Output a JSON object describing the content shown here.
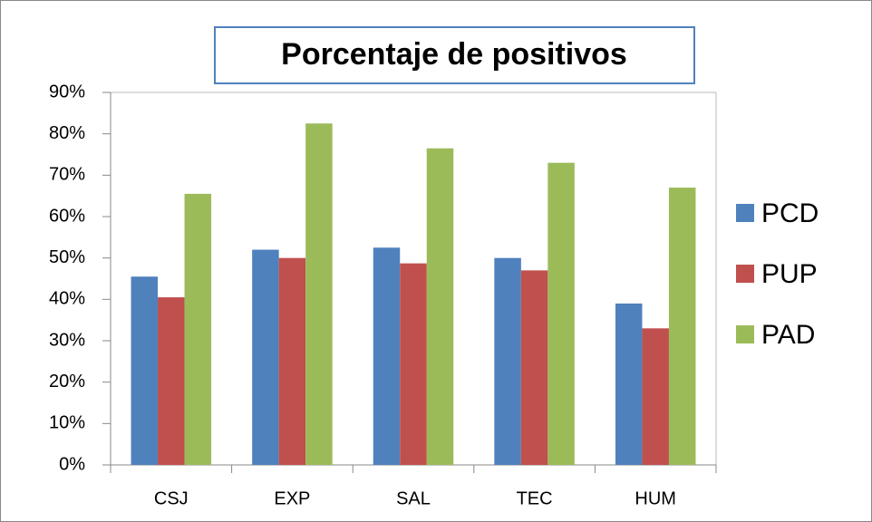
{
  "chart_data": {
    "type": "bar",
    "title": "Porcentaje de positivos",
    "categories": [
      "CSJ",
      "EXP",
      "SAL",
      "TEC",
      "HUM"
    ],
    "series": [
      {
        "name": "PCD",
        "color": "#4f81bd",
        "values": [
          45.5,
          52,
          52.5,
          50,
          39
        ]
      },
      {
        "name": "PUP",
        "color": "#c0504d",
        "values": [
          40.5,
          50,
          48.7,
          47,
          33
        ]
      },
      {
        "name": "PAD",
        "color": "#9bbb59",
        "values": [
          65.5,
          82.5,
          76.5,
          73,
          67
        ]
      }
    ],
    "ylim": [
      0,
      90
    ],
    "yticks": [
      {
        "value": 0,
        "label": "0%"
      },
      {
        "value": 10,
        "label": "10%"
      },
      {
        "value": 20,
        "label": "20%"
      },
      {
        "value": 30,
        "label": "30%"
      },
      {
        "value": 40,
        "label": "40%"
      },
      {
        "value": 50,
        "label": "50%"
      },
      {
        "value": 60,
        "label": "60%"
      },
      {
        "value": 70,
        "label": "70%"
      },
      {
        "value": 80,
        "label": "80%"
      },
      {
        "value": 90,
        "label": "90%"
      }
    ],
    "legend": "right",
    "grid": false
  }
}
